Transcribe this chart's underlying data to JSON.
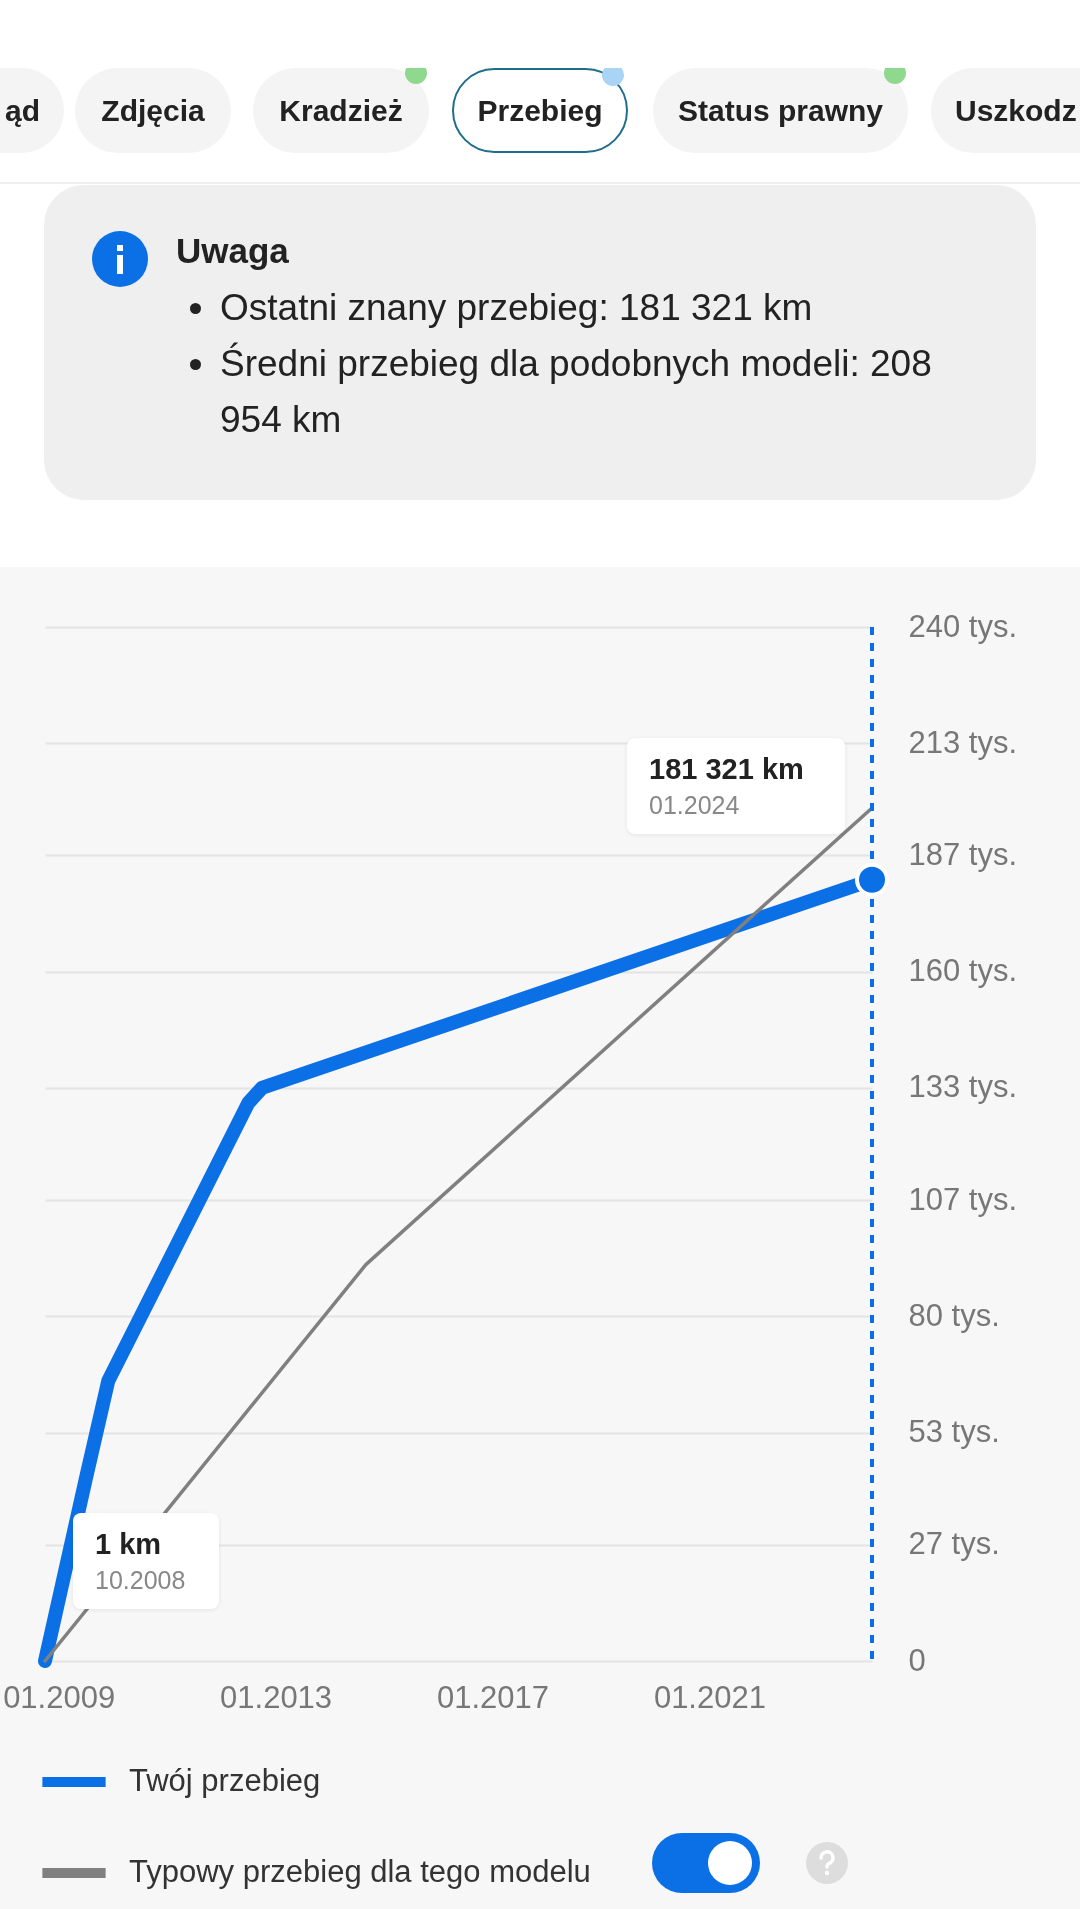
{
  "chart_data": {
    "type": "line",
    "annotations": [
      "ąd",
      "Zdjęcia",
      "Kradzież",
      "Przebieg",
      "Status prawny",
      "Uszkodz",
      "Uwaga",
      "Ostatni znany przebieg: 181 321 km",
      "Średni przebieg dla podobnych modeli: 208 954 km",
      "181 321 km",
      "01.2024",
      "1 km",
      "10.2008"
    ],
    "series": [
      {
        "name": "Twój przebieg",
        "color": "#0b6fe6",
        "x": [
          "2008-10",
          "2009-07",
          "2009-12",
          "2012-07",
          "2012-10",
          "2024-01"
        ],
        "values": [
          0,
          42,
          65,
          129.5,
          133,
          181.321
        ]
      },
      {
        "name": "Typowy przebieg dla tego modelu",
        "color": "#808080",
        "x": [
          "2008-10",
          "2014-09",
          "2024-01"
        ],
        "values": [
          0,
          92,
          198
        ]
      }
    ],
    "xlim": [
      "2008-10",
      "2024-01"
    ],
    "xticks": [
      {
        "value": "2009-01",
        "label": "01.2009"
      },
      {
        "value": "2013-01",
        "label": "01.2013"
      },
      {
        "value": "2017-01",
        "label": "01.2017"
      },
      {
        "value": "2021-01",
        "label": "01.2021"
      }
    ],
    "ylim": [
      0,
      240
    ],
    "yticks": [
      0,
      {
        "value": 27,
        "label": "27 tys."
      },
      {
        "value": 53,
        "label": "53 tys."
      },
      {
        "value": 80,
        "label": "80 tys."
      },
      {
        "value": 107,
        "label": "107 tys."
      },
      {
        "value": 133,
        "label": "133 tys."
      },
      {
        "value": 160,
        "label": "160 tys."
      },
      {
        "value": 187,
        "label": "187 tys."
      },
      {
        "value": 213,
        "label": "213 tys."
      },
      {
        "value": 240,
        "label": "240 tys."
      }
    ],
    "ref_lines": [
      {
        "axis": "x",
        "value": "2024-01",
        "color": "#0b6fe6",
        "line_style": "dashed"
      }
    ],
    "grid": "y",
    "legend": "bottom",
    "line_style": "solid"
  }
}
